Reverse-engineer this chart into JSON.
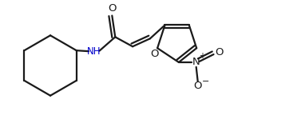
{
  "background_color": "#ffffff",
  "line_color": "#1a1a1a",
  "nh_color": "#0000cc",
  "line_width": 1.6,
  "figsize": [
    3.82,
    1.69
  ],
  "dpi": 100,
  "xlim": [
    0,
    3.82
  ],
  "ylim": [
    0,
    1.69
  ]
}
